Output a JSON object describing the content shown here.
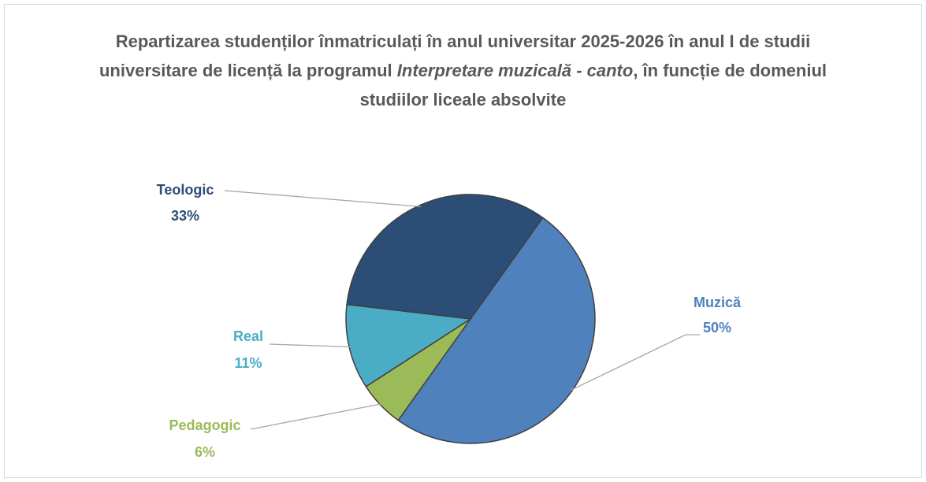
{
  "chart_data": {
    "type": "pie",
    "title": [
      "Repartizarea studenților înmatriculați în anul universitar 2025-2026 în anul I de studii universitare de licență la programul ",
      "Interpretare muzicală - canto",
      ", în funcție de domeniul studiilor liceale absolvite"
    ],
    "categories": [
      "Muzică",
      "Pedagogic",
      "Real",
      "Teologic"
    ],
    "values": [
      50,
      6,
      11,
      33
    ],
    "value_labels": [
      "50%",
      "6%",
      "11%",
      "33%"
    ],
    "colors": [
      "#4f81bd",
      "#9bbb59",
      "#4bacc6",
      "#2c4d75"
    ]
  }
}
